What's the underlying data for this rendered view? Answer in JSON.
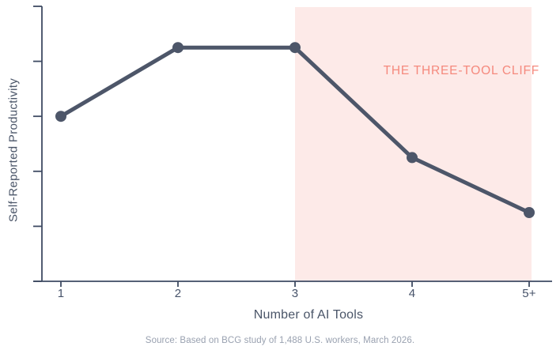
{
  "chart_data": {
    "type": "line",
    "x_categories": [
      "1",
      "2",
      "3",
      "4",
      "5+"
    ],
    "values": [
      60,
      85,
      85,
      45,
      25
    ],
    "xlabel": "Number of AI Tools",
    "ylabel": "Self-Reported Productivity",
    "ylim": [
      0,
      100
    ],
    "y_tick_count": 6,
    "y_tick_labels_visible": false,
    "grid": false,
    "legend": false,
    "annotation": {
      "label": "THE THREE-TOOL CLIFF",
      "region_start_category": "3",
      "region_end_category": "5+"
    },
    "source": "Source: Based on BCG study of 1,488 U.S. workers, March 2026.",
    "colors": {
      "line": "#4d5669",
      "point": "#4d5669",
      "axis": "#3f4b63",
      "region_fill": "#fdeae8",
      "annotation_text": "#f5897d",
      "axis_label_text": "#4a5568",
      "tick_label_text": "#47536a",
      "source_text": "#99a1b0",
      "background": "#ffffff"
    }
  }
}
